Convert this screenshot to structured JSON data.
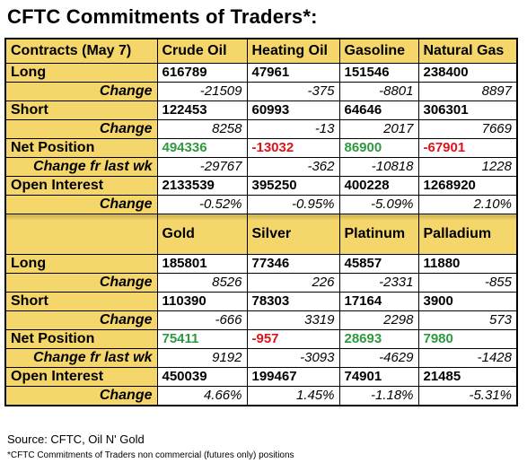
{
  "title": "CFTC Commitments of Traders*:",
  "energy": {
    "header": [
      "Contracts (May 7)",
      "Crude Oil",
      "Heating Oil",
      "Gasoline",
      "Natural Gas"
    ],
    "rows": [
      {
        "label": "Long",
        "sub": false,
        "kind": "val",
        "values": [
          "616789",
          "47961",
          "151546",
          "238400"
        ]
      },
      {
        "label": "Change",
        "sub": true,
        "kind": "chg",
        "values": [
          "-21509",
          "-375",
          "-8801",
          "8897"
        ]
      },
      {
        "label": "Short",
        "sub": false,
        "kind": "val",
        "values": [
          "122453",
          "60993",
          "64646",
          "306301"
        ]
      },
      {
        "label": "Change",
        "sub": true,
        "kind": "chg",
        "values": [
          "8258",
          "-13",
          "2017",
          "7669"
        ]
      },
      {
        "label": "Net Position",
        "sub": false,
        "kind": "net",
        "values": [
          "494336",
          "-13032",
          "86900",
          "-67901"
        ]
      },
      {
        "label": "Change fr last wk",
        "sub": true,
        "kind": "chg",
        "values": [
          "-29767",
          "-362",
          "-10818",
          "1228"
        ]
      },
      {
        "label": "Open Interest",
        "sub": false,
        "kind": "val",
        "values": [
          "2133539",
          "395250",
          "400228",
          "1268920"
        ]
      },
      {
        "label": "Change",
        "sub": true,
        "kind": "chg",
        "values": [
          "-0.52%",
          "-0.95%",
          "-5.09%",
          "2.10%"
        ]
      }
    ]
  },
  "metals": {
    "header": [
      "",
      "Gold",
      "Silver",
      "Platinum",
      "Palladium"
    ],
    "rows": [
      {
        "label": "Long",
        "sub": false,
        "kind": "val",
        "values": [
          "185801",
          "77346",
          "45857",
          "11880"
        ]
      },
      {
        "label": "Change",
        "sub": true,
        "kind": "chg",
        "values": [
          "8526",
          "226",
          "-2331",
          "-855"
        ]
      },
      {
        "label": "Short",
        "sub": false,
        "kind": "val",
        "values": [
          "110390",
          "78303",
          "17164",
          "3900"
        ]
      },
      {
        "label": "Change",
        "sub": true,
        "kind": "chg",
        "values": [
          "-666",
          "3319",
          "2298",
          "573"
        ]
      },
      {
        "label": "Net Position",
        "sub": false,
        "kind": "net",
        "values": [
          "75411",
          "-957",
          "28693",
          "7980"
        ]
      },
      {
        "label": "Change fr last wk",
        "sub": true,
        "kind": "chg",
        "values": [
          "9192",
          "-3093",
          "-4629",
          "-1428"
        ]
      },
      {
        "label": "Open Interest",
        "sub": false,
        "kind": "val",
        "values": [
          "450039",
          "199467",
          "74901",
          "21485"
        ]
      },
      {
        "label": "Change",
        "sub": true,
        "kind": "chg",
        "values": [
          "4.66%",
          "1.45%",
          "-1.18%",
          "-5.31%"
        ]
      }
    ]
  },
  "source": "Source: CFTC, Oil N' Gold",
  "footnote": "*CFTC Commitments of Traders non commercial (futures only) positions",
  "colors": {
    "header_fill": "#f5d66b",
    "positive_net": "#2e9a3f",
    "negative_net": "#e0121b"
  }
}
